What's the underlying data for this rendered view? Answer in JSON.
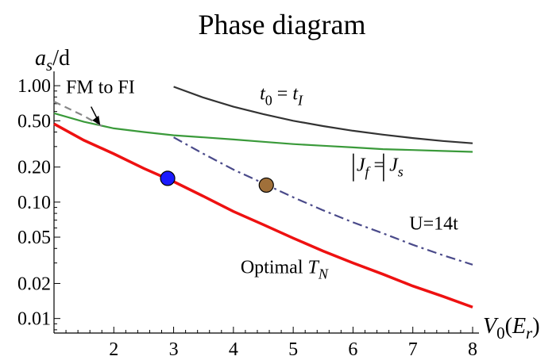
{
  "chart_data": {
    "type": "line",
    "title": "Phase diagram",
    "xlabel": "V0(Er)",
    "ylabel": "as/d",
    "xscale": "linear",
    "yscale": "log",
    "xlim": [
      1,
      8
    ],
    "ylim": [
      0.0075,
      1.1
    ],
    "x_ticks": [
      {
        "value": 2,
        "label": "2"
      },
      {
        "value": 3,
        "label": "3"
      },
      {
        "value": 4,
        "label": "4"
      },
      {
        "value": 5,
        "label": "5"
      },
      {
        "value": 6,
        "label": "6"
      },
      {
        "value": 7,
        "label": "7"
      },
      {
        "value": 8,
        "label": "8"
      }
    ],
    "y_ticks": [
      {
        "value": 0.01,
        "label": "0.01"
      },
      {
        "value": 0.02,
        "label": "0.02"
      },
      {
        "value": 0.05,
        "label": "0.05"
      },
      {
        "value": 0.1,
        "label": "0.10"
      },
      {
        "value": 0.2,
        "label": "0.20"
      },
      {
        "value": 0.5,
        "label": "0.50"
      },
      {
        "value": 1.0,
        "label": "1.00"
      }
    ],
    "series": [
      {
        "key": "t0-tI",
        "color": "#333333",
        "dash": "solid",
        "x": [
          3.0,
          3.5,
          4.0,
          4.5,
          5.0,
          5.5,
          6.0,
          6.5,
          7.0,
          7.5,
          8.0
        ],
        "y": [
          0.98,
          0.79,
          0.66,
          0.57,
          0.5,
          0.45,
          0.41,
          0.38,
          0.355,
          0.335,
          0.32
        ]
      },
      {
        "key": "jf-js",
        "color": "#3a9a3a",
        "dash": "solid",
        "x": [
          1.0,
          1.5,
          2.0,
          2.5,
          3.0,
          3.5,
          4.0,
          4.5,
          5.0,
          5.5,
          6.0,
          6.5,
          7.0,
          7.5,
          8.0
        ],
        "y": [
          0.58,
          0.49,
          0.43,
          0.4,
          0.375,
          0.36,
          0.345,
          0.33,
          0.315,
          0.305,
          0.295,
          0.285,
          0.28,
          0.275,
          0.27
        ]
      },
      {
        "key": "fm-fi",
        "color": "#888888",
        "dash": "dashed",
        "x": [
          1.0,
          1.5,
          1.8
        ],
        "y": [
          0.73,
          0.55,
          0.45
        ]
      },
      {
        "key": "optimal-tn",
        "color": "#ee1111",
        "dash": "solid",
        "x": [
          1.0,
          1.5,
          2.0,
          2.5,
          3.0,
          3.5,
          4.0,
          4.5,
          5.0,
          5.5,
          6.0,
          6.5,
          7.0,
          7.5,
          8.0
        ],
        "y": [
          0.47,
          0.34,
          0.26,
          0.195,
          0.15,
          0.112,
          0.083,
          0.064,
          0.049,
          0.038,
          0.03,
          0.024,
          0.019,
          0.0155,
          0.0125
        ]
      },
      {
        "key": "u-14t",
        "color": "#4a4a8a",
        "dash": "dashdot",
        "x": [
          3.0,
          3.5,
          4.0,
          4.5,
          5.0,
          5.5,
          6.0,
          6.5,
          7.0,
          7.5,
          8.0
        ],
        "y": [
          0.36,
          0.26,
          0.19,
          0.145,
          0.11,
          0.085,
          0.067,
          0.054,
          0.043,
          0.035,
          0.029
        ]
      }
    ],
    "markers": [
      {
        "key": "blue",
        "x": 2.9,
        "y": 0.16,
        "color": "#1a1aff"
      },
      {
        "key": "brown",
        "x": 4.55,
        "y": 0.14,
        "color": "#a0703a"
      }
    ],
    "annotations": [
      {
        "key": "t0-eq-tI",
        "parts": [
          {
            "t": "t",
            "i": true
          },
          {
            "t": "0",
            "sub": true
          },
          {
            "t": " = "
          },
          {
            "t": "t",
            "i": true
          },
          {
            "t": "I",
            "sub": true,
            "i": true
          }
        ],
        "x": 4.8,
        "y": 0.76,
        "anchor": "middle"
      },
      {
        "key": "fm-to-fi",
        "parts": [
          {
            "t": "FM to FI"
          }
        ],
        "x": 1.2,
        "y": 0.86,
        "anchor": "start"
      },
      {
        "key": "jf-eq-js",
        "parts": [
          {
            "t": "J",
            "i": true
          },
          {
            "t": "f",
            "sub": true,
            "i": true
          },
          {
            "t": "  = "
          },
          {
            "t": "J",
            "i": true
          },
          {
            "t": "s",
            "sub": true,
            "i": true
          }
        ],
        "x": 6.45,
        "y": 0.185,
        "anchor": "middle",
        "bars": true
      },
      {
        "key": "u-14t",
        "parts": [
          {
            "t": "U=14t"
          }
        ],
        "x": 7.35,
        "y": 0.058,
        "anchor": "middle"
      },
      {
        "key": "optimal-tn",
        "parts": [
          {
            "t": "Optimal "
          },
          {
            "t": "T",
            "i": true
          },
          {
            "t": "N",
            "sub": true,
            "i": true
          }
        ],
        "x": 4.85,
        "y": 0.0245,
        "anchor": "middle"
      }
    ]
  }
}
